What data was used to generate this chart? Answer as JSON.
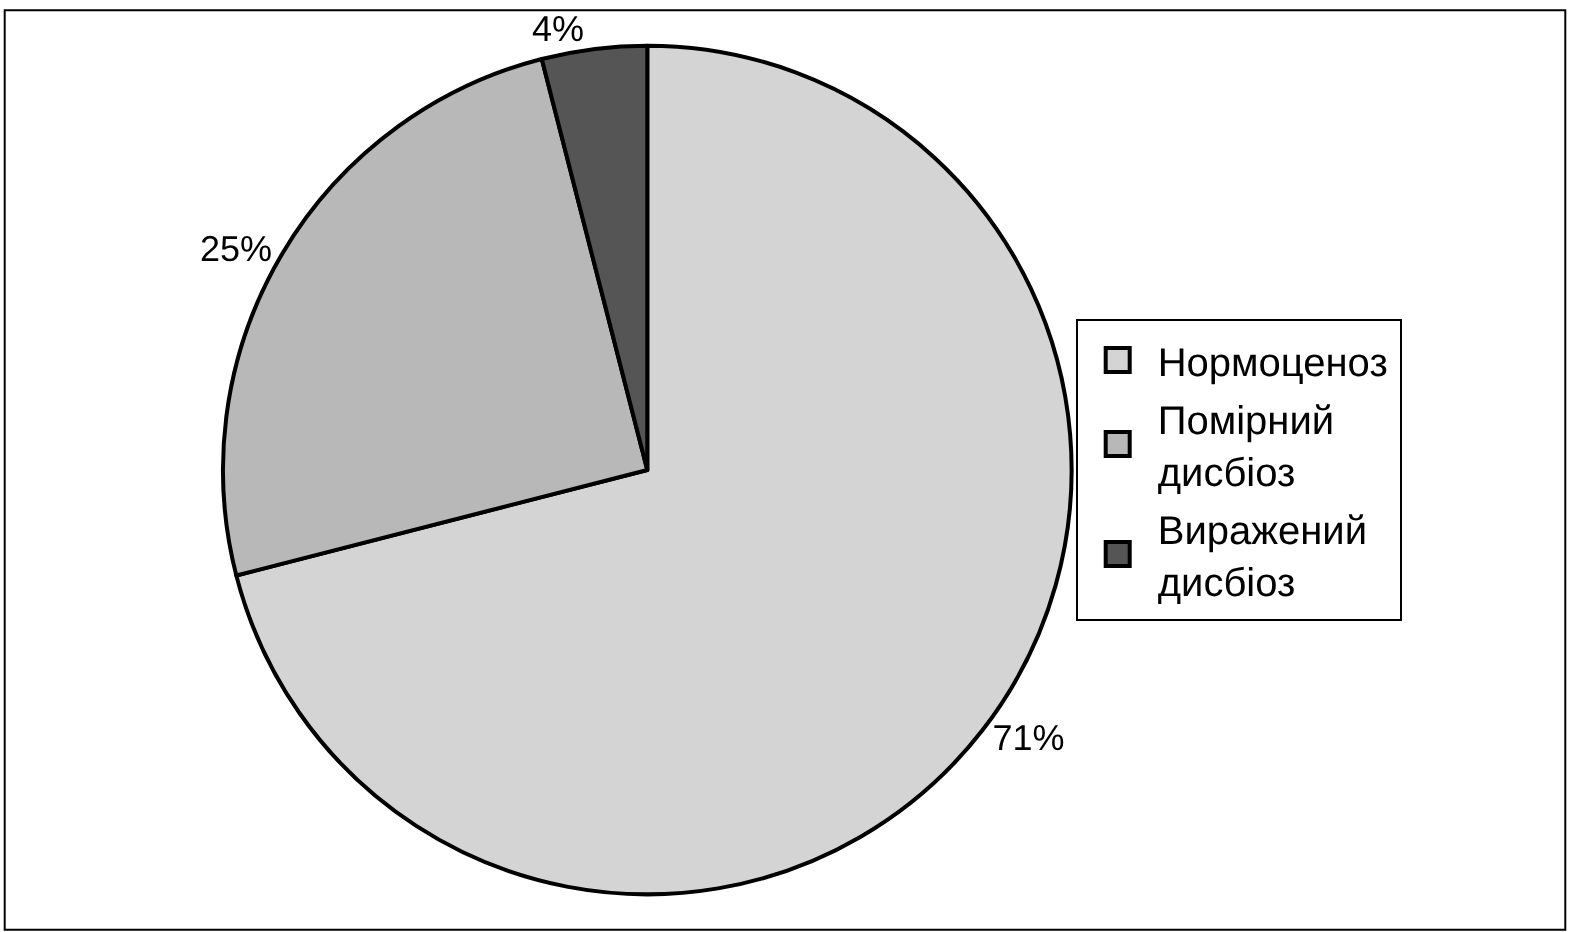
{
  "chart_data": {
    "type": "pie",
    "categories": [
      "Нормоценоз",
      "Помірний дисбіоз",
      "Виражений дисбіоз"
    ],
    "values": [
      71,
      25,
      4
    ],
    "colors": [
      "#d4d4d4",
      "#b8b8b8",
      "#555555"
    ],
    "value_labels": [
      "71%",
      "25%",
      "4%"
    ],
    "legend": "right"
  }
}
